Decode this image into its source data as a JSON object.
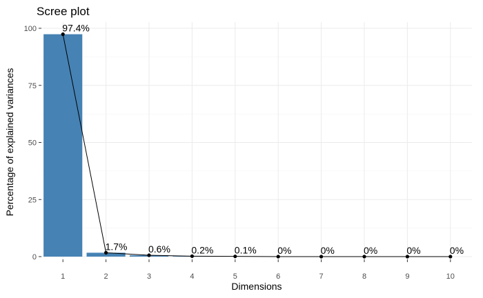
{
  "chart_data": {
    "type": "bar",
    "title": "Scree plot",
    "xlabel": "Dimensions",
    "ylabel": "Percentage of explained variances",
    "categories": [
      "1",
      "2",
      "3",
      "4",
      "5",
      "6",
      "7",
      "8",
      "9",
      "10"
    ],
    "values": [
      97.4,
      1.7,
      0.6,
      0.2,
      0.1,
      0,
      0,
      0,
      0,
      0
    ],
    "data_labels": [
      "97.4%",
      "1.7%",
      "0.6%",
      "0.2%",
      "0.1%",
      "0%",
      "0%",
      "0%",
      "0%",
      "0%"
    ],
    "yticks": [
      0,
      25,
      50,
      75,
      100
    ],
    "ytick_labels": [
      "0",
      "25",
      "50",
      "75",
      "100"
    ],
    "ylim": [
      0,
      100
    ],
    "grid": true,
    "legend": "none",
    "overlay": "line-with-points",
    "colors": {
      "bar": "#4682b4",
      "line": "#000000",
      "point": "#000000"
    }
  }
}
